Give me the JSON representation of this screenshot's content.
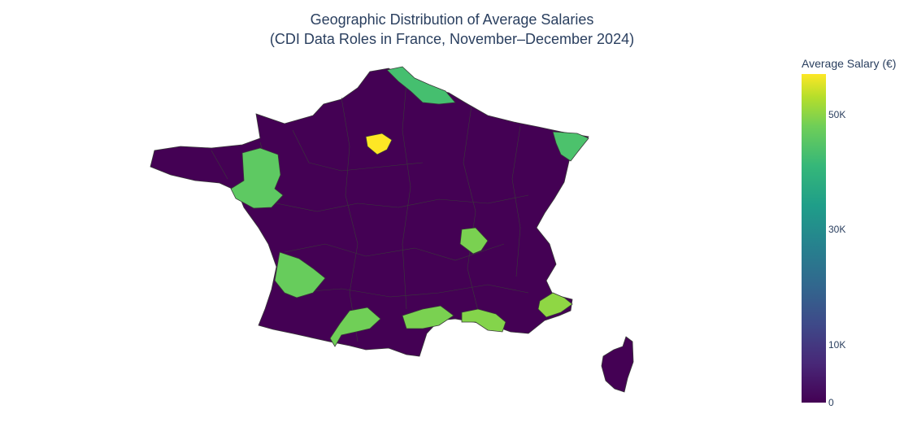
{
  "title": {
    "line1": "Geographic Distribution of Average Salaries",
    "line2": "(CDI Data Roles in France, November–December 2024)"
  },
  "colorbar": {
    "title": "Average Salary (€)",
    "ticks": [
      {
        "label": "50K",
        "value": 50000
      },
      {
        "label": "30K",
        "value": 30000
      },
      {
        "label": "10K",
        "value": 10000
      },
      {
        "label": "0",
        "value": 0
      }
    ],
    "max_value": 57000,
    "colorscale": "Viridis"
  },
  "map_data": {
    "type": "choropleth",
    "country": "France",
    "base_color": "#440154",
    "border_color": "#3a3a3a",
    "highlighted_regions": [
      {
        "name": "Paris",
        "color": "#fde725",
        "level": "max"
      },
      {
        "name": "Nord-Pas-de-Calais",
        "color": "#45bf6f",
        "level": "high"
      },
      {
        "name": "Alsace",
        "color": "#4cc26c",
        "level": "high"
      },
      {
        "name": "Brittany / Loire-Atlantique",
        "color": "#5ec962",
        "level": "high"
      },
      {
        "name": "Rhône",
        "color": "#7ad151",
        "level": "high"
      },
      {
        "name": "Gironde",
        "color": "#67cc5c",
        "level": "high"
      },
      {
        "name": "Haute-Garonne",
        "color": "#70cf57",
        "level": "high"
      },
      {
        "name": "Hérault",
        "color": "#7ad151",
        "level": "high"
      },
      {
        "name": "Bouches-du-Rhône",
        "color": "#84d44b",
        "level": "high"
      },
      {
        "name": "Alpes-Maritimes",
        "color": "#8fd744",
        "level": "high"
      }
    ]
  }
}
